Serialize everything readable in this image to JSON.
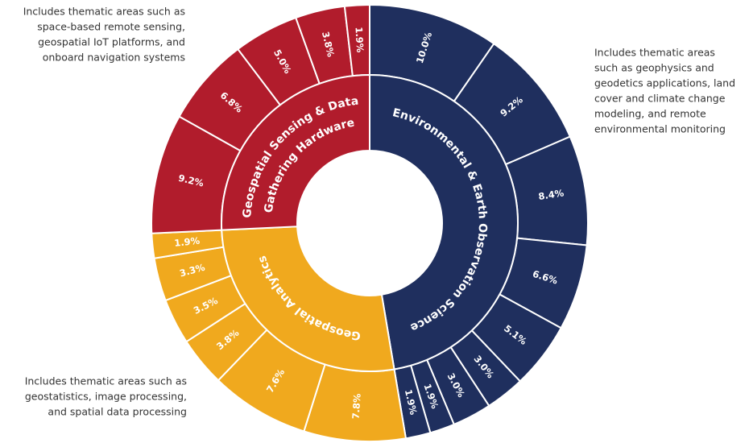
{
  "chart_data": {
    "type": "sunburst",
    "groups": [
      {
        "label_lines": [
          "Environmental & Earth Observation Science"
        ],
        "color": "#1f2f5e",
        "values": [
          10.0,
          9.2,
          8.4,
          6.6,
          5.1,
          3.0,
          3.0,
          1.9,
          1.9
        ],
        "value_labels": [
          "10.0%",
          "9.2%",
          "8.4%",
          "6.6%",
          "5.1%",
          "3.0%",
          "3.0%",
          "1.9%",
          "1.9%"
        ]
      },
      {
        "label_lines": [
          "Geospatial Analytics"
        ],
        "color": "#f0a91e",
        "values": [
          7.8,
          7.6,
          3.8,
          3.5,
          3.3,
          1.9
        ],
        "value_labels": [
          "7.8%",
          "7.6%",
          "3.8%",
          "3.5%",
          "3.3%",
          "1.9%"
        ]
      },
      {
        "label_lines": [
          "Geospatial Sensing & Data",
          "Gathering Hardware"
        ],
        "color": "#b11c2c",
        "values": [
          9.2,
          6.8,
          5.0,
          3.8,
          1.9
        ],
        "value_labels": [
          "9.2%",
          "6.8%",
          "5.0%",
          "3.8%",
          "1.9%"
        ]
      }
    ],
    "annotations": [
      {
        "lines": [
          "Includes thematic areas such as",
          "space-based remote sensing,",
          "geospatial IoT platforms, and",
          "onboard navigation systems"
        ]
      },
      {
        "lines": [
          "Includes thematic areas",
          "such as geophysics and",
          "geodetics applications, land",
          "cover and climate change",
          "modeling, and remote",
          "environmental monitoring"
        ]
      },
      {
        "lines": [
          "Includes thematic areas such as",
          "geostatistics, image processing,",
          "and spatial data processing"
        ]
      }
    ]
  }
}
